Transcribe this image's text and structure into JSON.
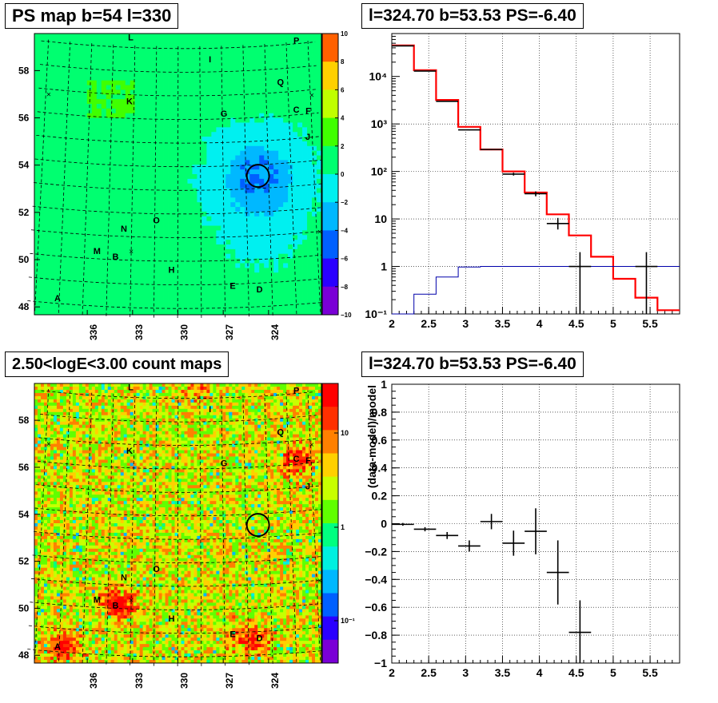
{
  "panels": {
    "ps_map": {
      "title": "PS map b=54 l=330",
      "colorbar_ticks": [
        "10",
        "8",
        "6",
        "4",
        "2",
        "0",
        "−2",
        "−4",
        "−6",
        "−8",
        "−10"
      ],
      "lon_ticks": [
        "336",
        "333",
        "330",
        "327",
        "324"
      ],
      "lat_ticks": [
        "58",
        "56",
        "54",
        "52",
        "50",
        "48"
      ]
    },
    "spectrum": {
      "title": "l=324.70 b=53.53 PS=-6.40",
      "x_ticks": [
        "2",
        "2.5",
        "3",
        "3.5",
        "4",
        "4.5",
        "5",
        "5.5"
      ],
      "y_ticks": [
        "10⁴",
        "10³",
        "10²",
        "10",
        "1",
        "10⁻¹"
      ]
    },
    "count_map": {
      "title": "2.50<logE<3.00 count maps",
      "colorbar_ticks": [
        "10",
        "1",
        "10⁻¹"
      ],
      "lon_ticks": [
        "336",
        "333",
        "330",
        "327",
        "324"
      ],
      "lat_ticks": [
        "58",
        "56",
        "54",
        "52",
        "50",
        "48"
      ]
    },
    "residual": {
      "title": "l=324.70 b=53.53 PS=-6.40",
      "ylabel": "(data-model)/model",
      "x_ticks": [
        "2",
        "2.5",
        "3",
        "3.5",
        "4",
        "4.5",
        "5",
        "5.5"
      ],
      "y_ticks": [
        "1",
        "0.8",
        "0.6",
        "0.4",
        "0.2",
        "0",
        "−0.2",
        "−0.4",
        "−0.6",
        "−0.8",
        "−1"
      ]
    }
  },
  "map_labels": [
    {
      "text": "L",
      "l": 333.3,
      "b": 59.3
    },
    {
      "text": "P",
      "l": 321.8,
      "b": 59.0
    },
    {
      "text": "I",
      "l": 327.8,
      "b": 58.4
    },
    {
      "text": "Q",
      "l": 323.0,
      "b": 57.3
    },
    {
      "text": "K",
      "l": 333.3,
      "b": 56.6
    },
    {
      "text": "G",
      "l": 326.9,
      "b": 56.1
    },
    {
      "text": "C",
      "l": 322.0,
      "b": 56.1
    },
    {
      "text": "F",
      "l": 321.2,
      "b": 56.0
    },
    {
      "text": "J",
      "l": 321.3,
      "b": 54.9
    },
    {
      "text": "O",
      "l": 331.4,
      "b": 51.6
    },
    {
      "text": "N",
      "l": 333.5,
      "b": 51.2
    },
    {
      "text": "M",
      "l": 335.2,
      "b": 50.2
    },
    {
      "text": "B",
      "l": 334.0,
      "b": 50.0
    },
    {
      "text": "H",
      "l": 330.4,
      "b": 49.5
    },
    {
      "text": "E",
      "l": 326.5,
      "b": 48.8
    },
    {
      "text": "D",
      "l": 324.8,
      "b": 48.6
    },
    {
      "text": "A",
      "l": 337.6,
      "b": 48.1
    }
  ],
  "source_marker": {
    "l": 324.7,
    "b": 53.53
  },
  "chart_data": [
    {
      "type": "heatmap",
      "title": "PS map b=54 l=330",
      "xlabel": "",
      "ylabel": "",
      "xlim": [
        339.5,
        320.5
      ],
      "ylim": [
        47.6,
        59.5
      ],
      "zlim": [
        -10,
        10
      ],
      "colorscale": [
        "#7a00d6",
        "#2a00ff",
        "#0060ff",
        "#00b8ff",
        "#00f0f0",
        "#00ff70",
        "#40ff00",
        "#c0ff00",
        "#ffd000",
        "#ff6000",
        "#ff0000"
      ]
    },
    {
      "type": "line",
      "title": "l=324.70 b=53.53 PS=-6.40",
      "xlabel": "",
      "ylabel": "",
      "xlim": [
        2.0,
        5.9
      ],
      "ylim": [
        0.1,
        80000
      ],
      "log_y": true,
      "grid": true,
      "series": [
        {
          "color": "#ff0000",
          "style": "step",
          "edges": [
            2.0,
            2.3,
            2.6,
            2.9,
            3.2,
            3.5,
            3.8,
            4.1,
            4.4,
            4.7,
            5.0,
            5.3,
            5.6,
            5.9
          ],
          "values": [
            45000,
            13500,
            3200,
            870,
            290,
            100,
            36,
            12.5,
            4.5,
            1.6,
            0.55,
            0.22,
            0.12
          ]
        },
        {
          "color": "#0000aa",
          "style": "step",
          "edges": [
            2.0,
            2.3,
            2.6,
            2.9,
            3.2,
            3.5,
            3.8,
            4.1,
            4.4,
            4.7,
            5.0,
            5.3,
            5.6,
            5.9
          ],
          "values": [
            0.1,
            0.26,
            0.6,
            0.97,
            1.0,
            1.0,
            1.0,
            1.0,
            1.0,
            1.0,
            1.0,
            1.0,
            1.0
          ]
        },
        {
          "color": "#000000",
          "style": "errorbars",
          "x": [
            2.15,
            2.45,
            2.75,
            3.05,
            3.35,
            3.65,
            3.95,
            4.25,
            4.55,
            5.45
          ],
          "xerr": 0.15,
          "y": [
            44000,
            13000,
            3000,
            750,
            290,
            88,
            34,
            8,
            1,
            1
          ],
          "ylo": [
            43500,
            12900,
            2950,
            735,
            283,
            82,
            30,
            6,
            0.1,
            0.1
          ],
          "yhi": [
            44500,
            13100,
            3050,
            765,
            297,
            94,
            38,
            10.5,
            2,
            2
          ]
        }
      ]
    },
    {
      "type": "heatmap",
      "title": "2.50<logE<3.00 count maps",
      "xlabel": "",
      "ylabel": "",
      "xlim": [
        339.5,
        320.5
      ],
      "ylim": [
        47.6,
        59.5
      ],
      "log_z": true,
      "zlim": [
        0.04,
        40
      ]
    },
    {
      "type": "scatter",
      "title": "l=324.70 b=53.53 PS=-6.40",
      "xlabel": "",
      "ylabel": "(data-model)/model",
      "xlim": [
        2.0,
        5.9
      ],
      "ylim": [
        -1,
        1
      ],
      "grid": true,
      "series": [
        {
          "color": "#000000",
          "style": "errorbars",
          "x": [
            2.15,
            2.45,
            2.75,
            3.05,
            3.35,
            3.65,
            3.95,
            4.25,
            4.55
          ],
          "xerr": 0.15,
          "y": [
            -0.005,
            -0.04,
            -0.085,
            -0.16,
            0.015,
            -0.14,
            -0.055,
            -0.35,
            -0.78
          ],
          "ylo": [
            -0.015,
            -0.055,
            -0.11,
            -0.2,
            -0.04,
            -0.23,
            -0.22,
            -0.58,
            -1.0
          ],
          "yhi": [
            0.005,
            -0.025,
            -0.06,
            -0.12,
            0.07,
            -0.05,
            0.11,
            -0.12,
            -0.55
          ]
        }
      ]
    }
  ]
}
